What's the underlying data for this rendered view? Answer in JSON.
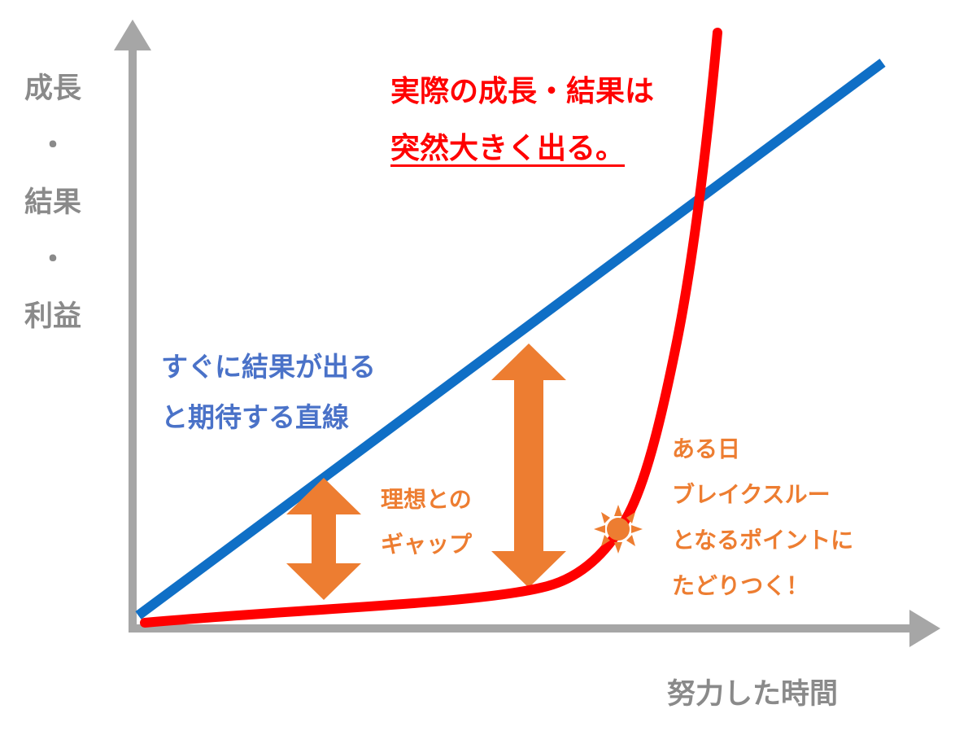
{
  "axes": {
    "y_label_lines": [
      "成長",
      "・",
      "結果",
      "・",
      "利益"
    ],
    "x_label": "努力した時間"
  },
  "annotations": {
    "actual_lines": [
      "実際の成長・結果は",
      "突然大きく出る。"
    ],
    "ideal_lines": [
      "すぐに結果が出る",
      "と期待する直線"
    ],
    "gap_lines": [
      "理想との",
      "ギャップ"
    ],
    "breakthrough_lines": [
      "ある日",
      "ブレイクスルー",
      "となるポイントに",
      "たどりつく！"
    ]
  },
  "colors": {
    "axis": "#a6a6a6",
    "ideal_line": "#0f6fc6",
    "actual_curve": "#ff0000",
    "gap_arrow": "#ed7d31",
    "breakthrough_marker": "#ed7d31",
    "y_label": "#8a8a8a",
    "actual_text": "#ff0000",
    "ideal_text": "#4a72c8",
    "orange_text": "#ed7d31"
  },
  "icons": {
    "breakthrough": "sun-burst-icon",
    "gap": "double-arrow-icon"
  }
}
